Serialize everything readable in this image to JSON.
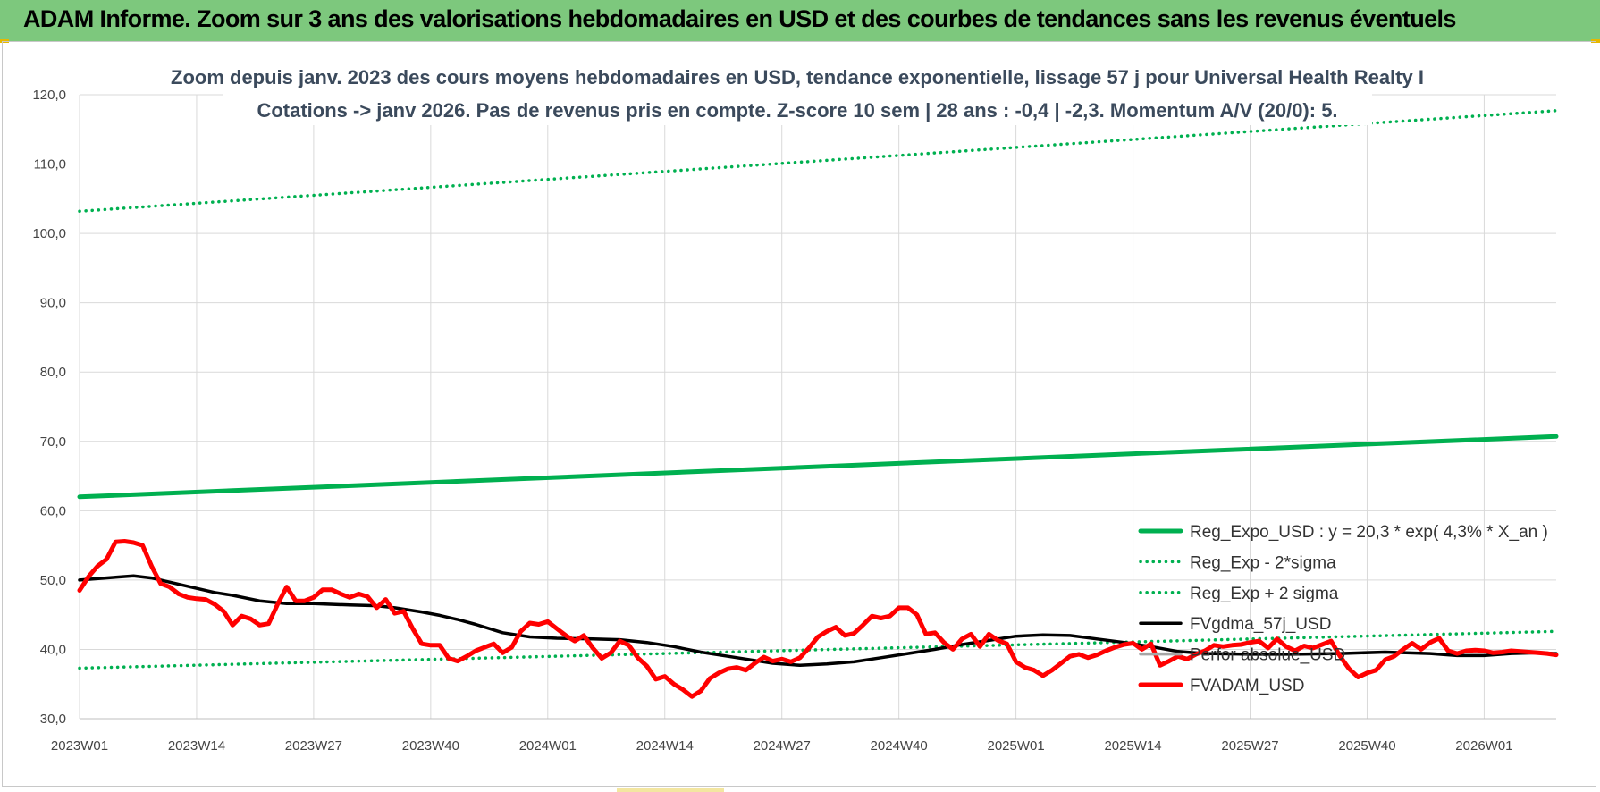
{
  "banner": {
    "title": "ADAM Informe. Zoom sur 3 ans des valorisations hebdomadaires en USD et des courbes de tendances sans les revenus éventuels"
  },
  "chart_data": {
    "type": "line",
    "title_line1": "Zoom depuis janv. 2023 des cours moyens hebdomadaires en USD, tendance exponentielle, lissage 57 j pour Universal Health Realty I",
    "title_line2": "Cotations -> janv 2026. Pas de revenus pris en compte. Z-score 10 sem | 28 ans : -0,4 | -2,3. Momentum A/V (20/0): 5.",
    "x_tick_labels": [
      "2023W01",
      "2023W14",
      "2023W27",
      "2023W40",
      "2024W01",
      "2024W14",
      "2024W27",
      "2024W40",
      "2025W01",
      "2025W14",
      "2025W27",
      "2025W40",
      "2026W01"
    ],
    "x_range_weeks": [
      0,
      164
    ],
    "y_tick_labels": [
      "30,0",
      "40,0",
      "50,0",
      "60,0",
      "70,0",
      "80,0",
      "90,0",
      "100,0",
      "110,0",
      "120,0"
    ],
    "ylim": [
      30,
      120
    ],
    "grid": true,
    "legend_position": "bottom-right",
    "series": [
      {
        "name": "Reg_Expo_USD : y = 20,3 * exp( 4,3% *  X_an )",
        "color": "#00b050",
        "style": "solid-thick",
        "points": [
          [
            0,
            62.0
          ],
          [
            164,
            70.7
          ]
        ]
      },
      {
        "name": "Reg_Exp - 2*sigma",
        "color": "#00b050",
        "style": "dotted",
        "points": [
          [
            0,
            37.3
          ],
          [
            164,
            42.6
          ]
        ]
      },
      {
        "name": "Reg_Exp + 2 sigma",
        "color": "#00b050",
        "style": "dotted",
        "points": [
          [
            0,
            103.2
          ],
          [
            164,
            117.7
          ]
        ]
      },
      {
        "name": "FVgdma_57j_USD",
        "color": "#000000",
        "style": "solid",
        "points": [
          [
            0,
            50.0
          ],
          [
            4,
            50.4
          ],
          [
            6,
            50.6
          ],
          [
            8,
            50.3
          ],
          [
            10,
            49.7
          ],
          [
            13,
            48.8
          ],
          [
            15,
            48.2
          ],
          [
            17,
            47.8
          ],
          [
            20,
            47.0
          ],
          [
            23,
            46.6
          ],
          [
            26,
            46.6
          ],
          [
            30,
            46.4
          ],
          [
            33,
            46.3
          ],
          [
            35,
            46.0
          ],
          [
            38,
            45.4
          ],
          [
            40,
            44.9
          ],
          [
            42,
            44.3
          ],
          [
            44,
            43.6
          ],
          [
            47,
            42.4
          ],
          [
            50,
            41.8
          ],
          [
            53,
            41.6
          ],
          [
            57,
            41.5
          ],
          [
            60,
            41.4
          ],
          [
            63,
            41.0
          ],
          [
            66,
            40.4
          ],
          [
            69,
            39.6
          ],
          [
            72,
            39.0
          ],
          [
            74,
            38.6
          ],
          [
            77,
            38.0
          ],
          [
            80,
            37.7
          ],
          [
            83,
            37.9
          ],
          [
            86,
            38.2
          ],
          [
            89,
            38.8
          ],
          [
            92,
            39.4
          ],
          [
            95,
            40.0
          ],
          [
            98,
            40.7
          ],
          [
            101,
            41.3
          ],
          [
            104,
            41.9
          ],
          [
            107,
            42.1
          ],
          [
            110,
            42.0
          ],
          [
            113,
            41.5
          ],
          [
            116,
            41.0
          ],
          [
            119,
            40.4
          ],
          [
            122,
            39.7
          ],
          [
            125,
            39.4
          ],
          [
            130,
            39.3
          ],
          [
            135,
            39.3
          ],
          [
            140,
            39.4
          ],
          [
            145,
            39.6
          ],
          [
            150,
            39.4
          ],
          [
            153,
            39.1
          ],
          [
            156,
            39.1
          ],
          [
            159,
            39.4
          ],
          [
            162,
            39.5
          ],
          [
            164,
            39.4
          ]
        ]
      },
      {
        "name": "Perfor absolue_USD",
        "color": "#a6a6a6",
        "style": "solid",
        "points": []
      },
      {
        "name": "FVADAM_USD",
        "color": "#ff0000",
        "style": "solid-thick",
        "points": [
          [
            0,
            48.5
          ],
          [
            1,
            50.5
          ],
          [
            2,
            52.0
          ],
          [
            3,
            53.0
          ],
          [
            4,
            55.5
          ],
          [
            5,
            55.6
          ],
          [
            6,
            55.4
          ],
          [
            7,
            55.0
          ],
          [
            8,
            52.0
          ],
          [
            9,
            49.5
          ],
          [
            10,
            49.0
          ],
          [
            11,
            48.0
          ],
          [
            12,
            47.5
          ],
          [
            13,
            47.3
          ],
          [
            14,
            47.2
          ],
          [
            15,
            46.5
          ],
          [
            16,
            45.5
          ],
          [
            17,
            43.5
          ],
          [
            18,
            44.8
          ],
          [
            19,
            44.4
          ],
          [
            20,
            43.5
          ],
          [
            21,
            43.7
          ],
          [
            22,
            46.5
          ],
          [
            23,
            49.0
          ],
          [
            24,
            47.0
          ],
          [
            25,
            47.0
          ],
          [
            26,
            47.5
          ],
          [
            27,
            48.6
          ],
          [
            28,
            48.6
          ],
          [
            29,
            48.0
          ],
          [
            30,
            47.5
          ],
          [
            31,
            48.0
          ],
          [
            32,
            47.6
          ],
          [
            33,
            46.0
          ],
          [
            34,
            47.2
          ],
          [
            35,
            45.2
          ],
          [
            36,
            45.5
          ],
          [
            37,
            43.0
          ],
          [
            38,
            40.8
          ],
          [
            39,
            40.6
          ],
          [
            40,
            40.6
          ],
          [
            41,
            38.7
          ],
          [
            42,
            38.3
          ],
          [
            43,
            39.0
          ],
          [
            44,
            39.8
          ],
          [
            45,
            40.3
          ],
          [
            46,
            40.8
          ],
          [
            47,
            39.5
          ],
          [
            48,
            40.3
          ],
          [
            49,
            42.6
          ],
          [
            50,
            43.8
          ],
          [
            51,
            43.6
          ],
          [
            52,
            44.0
          ],
          [
            53,
            43.0
          ],
          [
            54,
            42.0
          ],
          [
            55,
            41.2
          ],
          [
            56,
            42.0
          ],
          [
            57,
            40.2
          ],
          [
            58,
            38.7
          ],
          [
            59,
            39.5
          ],
          [
            60,
            41.2
          ],
          [
            61,
            40.6
          ],
          [
            62,
            38.8
          ],
          [
            63,
            37.6
          ],
          [
            64,
            35.7
          ],
          [
            65,
            36.1
          ],
          [
            66,
            35.0
          ],
          [
            67,
            34.2
          ],
          [
            68,
            33.2
          ],
          [
            69,
            34.0
          ],
          [
            70,
            35.8
          ],
          [
            71,
            36.6
          ],
          [
            72,
            37.2
          ],
          [
            73,
            37.4
          ],
          [
            74,
            37.0
          ],
          [
            75,
            38.0
          ],
          [
            76,
            38.9
          ],
          [
            77,
            38.3
          ],
          [
            78,
            38.6
          ],
          [
            79,
            38.2
          ],
          [
            80,
            38.8
          ],
          [
            81,
            40.2
          ],
          [
            82,
            41.8
          ],
          [
            83,
            42.6
          ],
          [
            84,
            43.2
          ],
          [
            85,
            42.0
          ],
          [
            86,
            42.3
          ],
          [
            87,
            43.5
          ],
          [
            88,
            44.8
          ],
          [
            89,
            44.5
          ],
          [
            90,
            44.8
          ],
          [
            91,
            46.0
          ],
          [
            92,
            46.0
          ],
          [
            93,
            45.0
          ],
          [
            94,
            42.2
          ],
          [
            95,
            42.4
          ],
          [
            96,
            41.0
          ],
          [
            97,
            40.0
          ],
          [
            98,
            41.5
          ],
          [
            99,
            42.2
          ],
          [
            100,
            40.4
          ],
          [
            101,
            42.2
          ],
          [
            102,
            41.3
          ],
          [
            103,
            40.8
          ],
          [
            104,
            38.2
          ],
          [
            105,
            37.4
          ],
          [
            106,
            37.0
          ],
          [
            107,
            36.2
          ],
          [
            108,
            37.0
          ],
          [
            109,
            38.0
          ],
          [
            110,
            39.0
          ],
          [
            111,
            39.3
          ],
          [
            112,
            38.8
          ],
          [
            113,
            39.2
          ],
          [
            114,
            39.8
          ],
          [
            115,
            40.3
          ],
          [
            116,
            40.7
          ],
          [
            117,
            40.9
          ],
          [
            118,
            40.0
          ],
          [
            119,
            40.8
          ],
          [
            120,
            37.7
          ],
          [
            121,
            38.3
          ],
          [
            122,
            39.0
          ],
          [
            123,
            38.6
          ],
          [
            124,
            39.3
          ],
          [
            125,
            39.8
          ],
          [
            126,
            40.6
          ],
          [
            127,
            40.4
          ],
          [
            128,
            40.6
          ],
          [
            129,
            40.7
          ],
          [
            130,
            41.0
          ],
          [
            131,
            41.2
          ],
          [
            132,
            40.2
          ],
          [
            133,
            41.5
          ],
          [
            134,
            40.4
          ],
          [
            135,
            39.8
          ],
          [
            136,
            40.5
          ],
          [
            137,
            40.2
          ],
          [
            138,
            40.7
          ],
          [
            139,
            41.2
          ],
          [
            140,
            39.0
          ],
          [
            141,
            37.2
          ],
          [
            142,
            36.0
          ],
          [
            143,
            36.6
          ],
          [
            144,
            37.0
          ],
          [
            145,
            38.5
          ],
          [
            146,
            39.0
          ],
          [
            147,
            40.0
          ],
          [
            148,
            40.9
          ],
          [
            149,
            40.0
          ],
          [
            150,
            41.0
          ],
          [
            151,
            41.6
          ],
          [
            152,
            39.8
          ],
          [
            153,
            39.4
          ],
          [
            154,
            39.8
          ],
          [
            155,
            39.9
          ],
          [
            156,
            39.8
          ],
          [
            157,
            39.5
          ],
          [
            158,
            39.6
          ],
          [
            159,
            39.8
          ],
          [
            160,
            39.7
          ],
          [
            161,
            39.6
          ],
          [
            162,
            39.5
          ],
          [
            163,
            39.4
          ],
          [
            164,
            39.2
          ]
        ]
      }
    ]
  }
}
